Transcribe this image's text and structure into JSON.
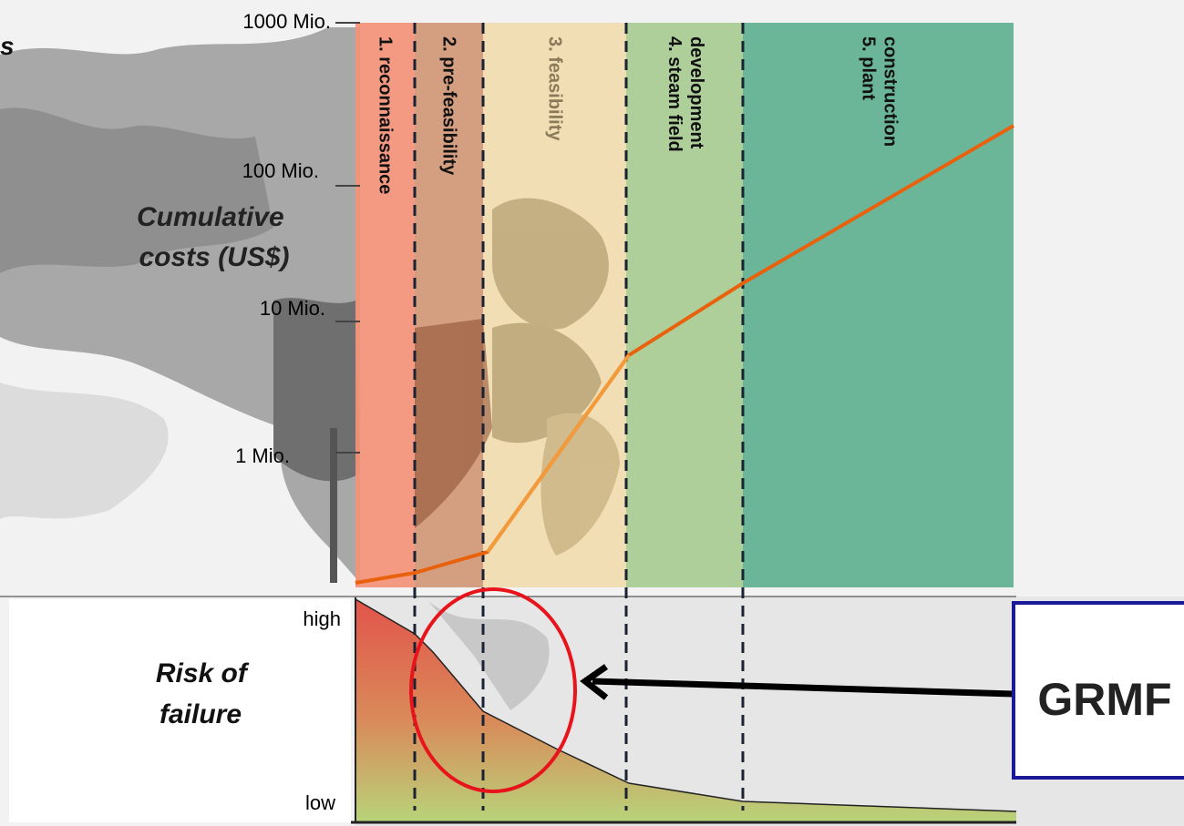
{
  "partial_text": "s",
  "cost_axis": {
    "title_lines": [
      "Cumulative",
      "costs (US$)"
    ],
    "ticks": [
      "1000 Mio.",
      "100 Mio.",
      "10 Mio.",
      "1 Mio."
    ]
  },
  "phases": [
    {
      "lines": [
        "1. reconnaissance"
      ],
      "color": "#f4937a"
    },
    {
      "lines": [
        "2. pre-feasibility"
      ],
      "color": "#d19776"
    },
    {
      "lines": [
        "3. feasibility"
      ],
      "color": "#f1dcb0"
    },
    {
      "lines": [
        "4. steam field",
        "development"
      ],
      "color": "#a9cc92"
    },
    {
      "lines": [
        "5. plant",
        "construction"
      ],
      "color": "#5fb190"
    }
  ],
  "risk_axis": {
    "title_lines": [
      "Risk of",
      "failure"
    ],
    "high_label": "high",
    "low_label": "low"
  },
  "grmf_box": {
    "label": "GRMF",
    "border_color": "#1a1a99"
  },
  "colors": {
    "cost_curve": "#e8620e",
    "highlight_ellipse": "#e8141c",
    "risk_top": "#e2544a",
    "risk_bottom": "#b8d47a"
  }
}
